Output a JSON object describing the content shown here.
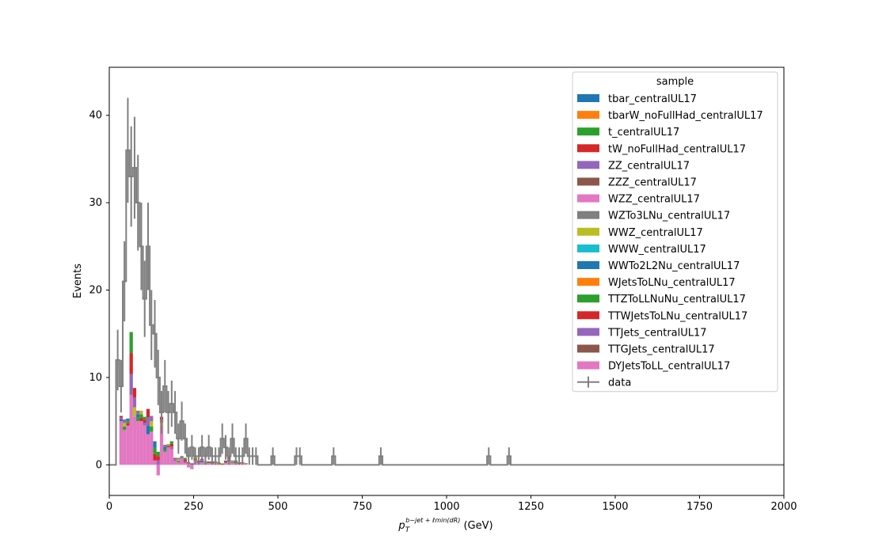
{
  "chart_data": {
    "type": "histogram-stacked",
    "xlabel_main": "p",
    "xlabel_sub": "T",
    "xlabel_sup": "b−jet + ℓmin(dR)",
    "xlabel_unit": " (GeV)",
    "ylabel": "Events",
    "xlim": [
      0,
      2000
    ],
    "ylim": [
      -3.5,
      45.5
    ],
    "xticks": [
      0,
      250,
      500,
      750,
      1000,
      1250,
      1500,
      1750,
      2000
    ],
    "yticks": [
      0,
      10,
      20,
      30,
      40
    ],
    "legend_title": "sample",
    "legend_position": "top-right",
    "legend": [
      {
        "name": "tbar_centralUL17",
        "color": "#1f77b4"
      },
      {
        "name": "tbarW_noFullHad_centralUL17",
        "color": "#ff7f0e"
      },
      {
        "name": "t_centralUL17",
        "color": "#2ca02c"
      },
      {
        "name": "tW_noFullHad_centralUL17",
        "color": "#d62728"
      },
      {
        "name": "ZZ_centralUL17",
        "color": "#9467bd"
      },
      {
        "name": "ZZZ_centralUL17",
        "color": "#8c564b"
      },
      {
        "name": "WZZ_centralUL17",
        "color": "#e377c2"
      },
      {
        "name": "WZTo3LNu_centralUL17",
        "color": "#7f7f7f"
      },
      {
        "name": "WWZ_centralUL17",
        "color": "#bcbd22"
      },
      {
        "name": "WWW_centralUL17",
        "color": "#17becf"
      },
      {
        "name": "WWTo2L2Nu_centralUL17",
        "color": "#1f77b4"
      },
      {
        "name": "WJetsToLNu_centralUL17",
        "color": "#ff7f0e"
      },
      {
        "name": "TTZToLLNuNu_centralUL17",
        "color": "#2ca02c"
      },
      {
        "name": "TTWJetsToLNu_centralUL17",
        "color": "#d62728"
      },
      {
        "name": "TTJets_centralUL17",
        "color": "#9467bd"
      },
      {
        "name": "TTGJets_centralUL17",
        "color": "#8c564b"
      },
      {
        "name": "DYJetsToLL_centralUL17",
        "color": "#e377c2"
      },
      {
        "name": "data",
        "color": "#7f7f7f",
        "marker": "errorbar"
      }
    ],
    "bin_width": 10,
    "stack": {
      "bins": [
        30,
        40,
        50,
        60,
        70,
        80,
        90,
        100,
        110,
        120,
        130,
        140,
        150,
        160,
        170,
        180,
        190,
        200,
        210,
        220,
        230,
        240,
        250,
        260,
        270,
        280,
        290,
        300,
        310,
        320,
        330,
        340,
        350,
        360,
        370,
        380,
        390,
        400
      ],
      "dy": [
        5.0,
        4.0,
        4.5,
        8.0,
        5.5,
        5.0,
        5.0,
        4.5,
        3.5,
        3.8,
        0.5,
        -1.2,
        4.5,
        1.5,
        2.0,
        1.8,
        0.5,
        0.3,
        0.8,
        0.2,
        -0.3,
        -0.5,
        0.5,
        0.2,
        0.3,
        0.1,
        0.2,
        0.1,
        0.2,
        0.1,
        0.0,
        0.2,
        0.4,
        0.2,
        0.2,
        0.1,
        0.1,
        0.1
      ],
      "other": [
        0.6,
        1.2,
        0.8,
        7.2,
        3.3,
        1.2,
        1.2,
        1.0,
        2.9,
        1.8,
        2.2,
        1.5,
        1.0,
        0.8,
        0.4,
        0.9,
        0.3,
        0.5,
        0.2,
        0.6,
        0.3,
        0.2,
        0.5,
        0.3,
        0.4,
        0.3,
        0.2,
        0.3,
        0.2,
        0.2,
        0.2,
        0.3,
        0.5,
        0.3,
        0.3,
        0.2,
        0.2,
        0.1
      ]
    },
    "data": {
      "x": [
        5,
        15,
        25,
        35,
        45,
        55,
        65,
        75,
        85,
        95,
        105,
        115,
        125,
        135,
        145,
        155,
        165,
        175,
        185,
        195,
        205,
        215,
        225,
        235,
        245,
        255,
        265,
        275,
        285,
        295,
        305,
        315,
        325,
        335,
        345,
        355,
        365,
        375,
        385,
        395,
        405,
        415,
        425,
        435,
        485,
        555,
        565,
        665,
        805,
        1125,
        1185
      ],
      "y": [
        0,
        0,
        12,
        9,
        21,
        36,
        33,
        34,
        30,
        25,
        19,
        25,
        16,
        15,
        10,
        6,
        9,
        6,
        7,
        6,
        3,
        5,
        3,
        1,
        2,
        1,
        1,
        2,
        1,
        2,
        1,
        1,
        1,
        3,
        2,
        1,
        3,
        1,
        1,
        1,
        3,
        1,
        1,
        1,
        1,
        1,
        1,
        1,
        1,
        1,
        1
      ]
    }
  }
}
